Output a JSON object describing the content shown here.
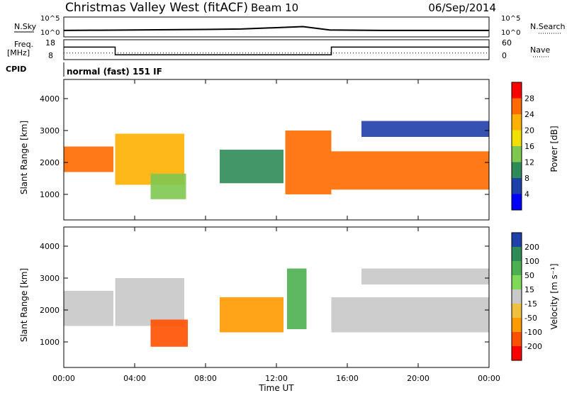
{
  "header": {
    "station": "Christmas Valley West (fitACF)",
    "beam": "Beam 10",
    "date": "06/Sep/2014"
  },
  "top_panels": {
    "nsky_label": "N.Sky",
    "nsky_ticks": [
      "10^5",
      "10^0"
    ],
    "nsearch_label": "N.Search",
    "nsearch_ticks": [
      "10^5",
      "10^0"
    ],
    "freq_label": "Freq.",
    "freq_unit": "[MHz]",
    "freq_ticks": [
      "18",
      "8"
    ],
    "nave_label": "Nave",
    "nave_ticks": [
      "60",
      "0"
    ],
    "cpid_label": "CPID",
    "cpid_text": "normal (fast) 151 IF"
  },
  "colorbars": {
    "power": {
      "title": "Power [dB]",
      "ticks": [
        "28",
        "24",
        "20",
        "16",
        "12",
        "8",
        "4"
      ],
      "colors": [
        "#ff0000",
        "#ff6a00",
        "#ffb000",
        "#f0e000",
        "#7ec850",
        "#2e8b57",
        "#1f3faa",
        "#0000ff"
      ]
    },
    "velocity": {
      "title": "Velocity [m s⁻¹]",
      "ticks": [
        "200",
        "100",
        "50",
        "15",
        "-15",
        "-50",
        "-100",
        "-200"
      ],
      "colors": [
        "#1f3faa",
        "#2e8b57",
        "#4caf50",
        "#7ed957",
        "#c8c8c8",
        "#f0c040",
        "#ff9a00",
        "#ff5000",
        "#ff0000"
      ]
    }
  },
  "axes": {
    "ylabel": "Slant Range [km]",
    "xlabel": "Time UT",
    "yticks": [
      "4000",
      "3000",
      "2000",
      "1000"
    ],
    "xticks": [
      "00:00",
      "04:00",
      "08:00",
      "12:00",
      "16:00",
      "20:00",
      "00:00"
    ]
  },
  "chart_data": [
    {
      "type": "line",
      "panel": "N.Sky / N.Search",
      "x_range_hours": [
        0,
        24
      ],
      "series": [
        {
          "name": "N.Sky",
          "y_scale": "log",
          "ylim": [
            1,
            100000
          ],
          "x": [
            0,
            2,
            4,
            8,
            10,
            12,
            13.5,
            15,
            18,
            24
          ],
          "values": [
            30,
            35,
            40,
            60,
            80,
            200,
            400,
            40,
            30,
            30
          ]
        },
        {
          "name": "N.Search",
          "y_scale": "log",
          "ylim": [
            1,
            100000
          ],
          "x": [
            0,
            24
          ],
          "values": [
            1,
            1
          ]
        }
      ]
    },
    {
      "type": "line",
      "panel": "Freq. / Nave",
      "x_range_hours": [
        0,
        24
      ],
      "series": [
        {
          "name": "Freq.",
          "unit": "MHz",
          "ylim": [
            8,
            18
          ],
          "x": [
            0,
            2.9,
            2.9,
            15.1,
            15.1,
            24
          ],
          "values": [
            14.5,
            14.5,
            10.0,
            10.0,
            14.5,
            14.5
          ]
        },
        {
          "name": "Nave",
          "ylim": [
            0,
            60
          ],
          "x": [
            0,
            2.9,
            2.9,
            15.1,
            15.1,
            24
          ],
          "values": [
            18,
            18,
            18,
            18,
            18,
            18
          ]
        }
      ]
    },
    {
      "type": "heatmap",
      "panel": "Power",
      "x_range_hours": [
        0,
        24
      ],
      "ylim_km": [
        200,
        4600
      ],
      "colorbar_range_db": [
        0,
        32
      ],
      "regions": [
        {
          "t0": 0.0,
          "t1": 2.8,
          "r_low": 1700,
          "r_high": 2500,
          "db": 26
        },
        {
          "t0": 2.9,
          "t1": 6.8,
          "r_low": 1300,
          "r_high": 2900,
          "db": 24
        },
        {
          "t0": 4.9,
          "t1": 6.9,
          "r_low": 850,
          "r_high": 1650,
          "db": 14
        },
        {
          "t0": 8.8,
          "t1": 12.4,
          "r_low": 1350,
          "r_high": 2400,
          "db": 12
        },
        {
          "t0": 12.5,
          "t1": 15.1,
          "r_low": 1000,
          "r_high": 3000,
          "db": 26
        },
        {
          "t0": 15.1,
          "t1": 24.0,
          "r_low": 1150,
          "r_high": 2350,
          "db": 28
        },
        {
          "t0": 16.8,
          "t1": 24.0,
          "r_low": 2800,
          "r_high": 3300,
          "db": 8
        }
      ]
    },
    {
      "type": "heatmap",
      "panel": "Velocity",
      "x_range_hours": [
        0,
        24
      ],
      "ylim_km": [
        200,
        4600
      ],
      "colorbar_range_ms": [
        -200,
        200
      ],
      "regions": [
        {
          "t0": 0.0,
          "t1": 2.8,
          "r_low": 1500,
          "r_high": 2600,
          "vel": 0
        },
        {
          "t0": 2.9,
          "t1": 6.8,
          "r_low": 1500,
          "r_high": 3000,
          "vel": 0
        },
        {
          "t0": 4.9,
          "t1": 7.0,
          "r_low": 850,
          "r_high": 1700,
          "vel": -80
        },
        {
          "t0": 8.8,
          "t1": 12.4,
          "r_low": 1300,
          "r_high": 2400,
          "vel": -60
        },
        {
          "t0": 12.6,
          "t1": 13.7,
          "r_low": 1400,
          "r_high": 3300,
          "vel": 40
        },
        {
          "t0": 15.1,
          "t1": 24.0,
          "r_low": 1300,
          "r_high": 2400,
          "vel": 0
        },
        {
          "t0": 16.8,
          "t1": 24.0,
          "r_low": 2800,
          "r_high": 3300,
          "vel": 10
        }
      ]
    }
  ]
}
